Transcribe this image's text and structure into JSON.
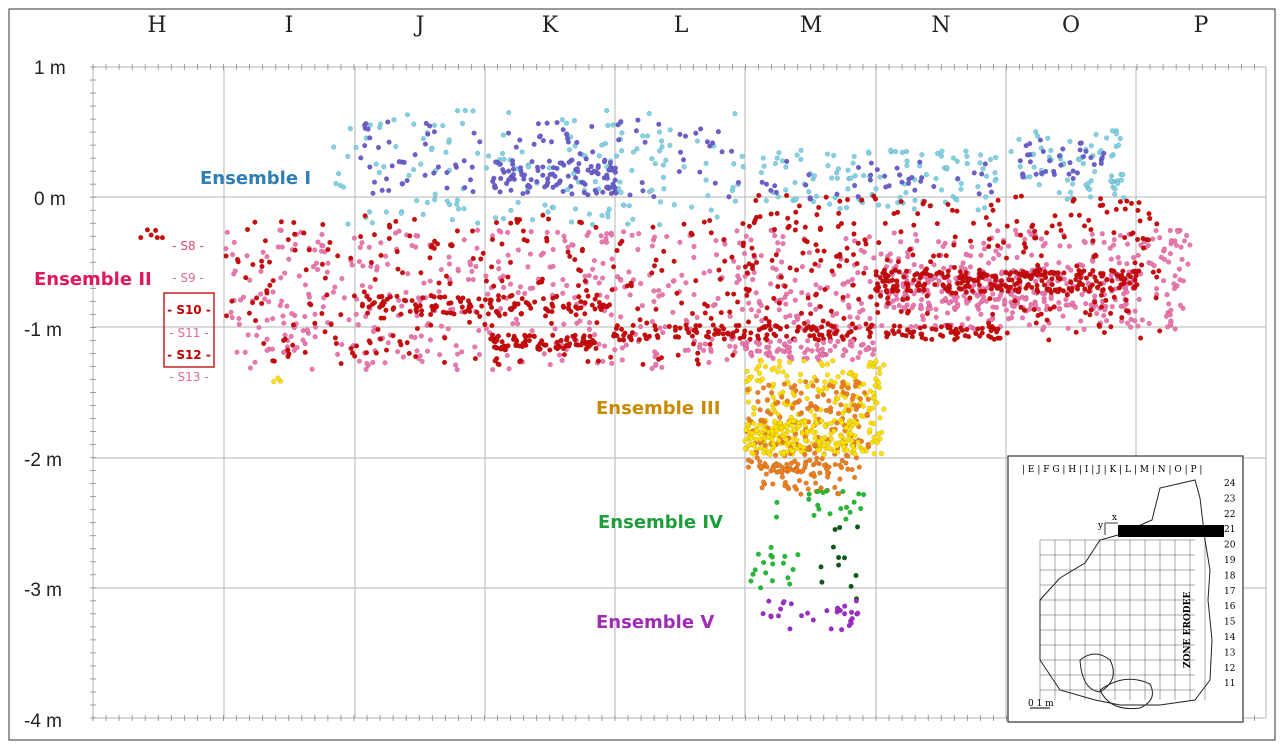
{
  "columns": [
    "H",
    "I",
    "J",
    "K",
    "L",
    "M",
    "N",
    "O",
    "P"
  ],
  "depth_labels": [
    "1 m",
    "0 m",
    "-1 m",
    "-2 m",
    "-3 m",
    "-4 m"
  ],
  "ensembles": [
    {
      "label": "Ensemble I",
      "color": "#2e7fb3"
    },
    {
      "label": "Ensemble II",
      "color": "#e0185a"
    },
    {
      "label": "Ensemble III",
      "color": "#c88a00"
    },
    {
      "label": "Ensemble IV",
      "color": "#1e9e3a"
    },
    {
      "label": "Ensemble V",
      "color": "#a02cb5"
    }
  ],
  "layers": [
    {
      "label": "- S8 -",
      "color": "#e04a6a"
    },
    {
      "label": "- S9 -",
      "color": "#e06a9a"
    },
    {
      "label": "- S10 -",
      "color": "#c00000"
    },
    {
      "label": "- S11 -",
      "color": "#e06a9a"
    },
    {
      "label": "- S12 -",
      "color": "#c00000"
    },
    {
      "label": "- S13 -",
      "color": "#e06a9a"
    }
  ],
  "inset": {
    "columns_header": "| E | F  G | H | I  | J | K | L | M | N | O | P |",
    "rows": [
      "24",
      "23",
      "22",
      "21",
      "20",
      "19",
      "18",
      "17",
      "16",
      "15",
      "14",
      "13",
      "12",
      "11"
    ],
    "zone_label": "ZONE ERODEE",
    "scale_label": "0  1 m",
    "axis_x": "x",
    "axis_y": "y"
  },
  "point_colors": {
    "light_blue": "#7fd3e6",
    "purple_blue": "#6a5fcc",
    "dark_red": "#cc0a0a",
    "pink": "#ee77b0",
    "yellow": "#ffe000",
    "orange": "#ee8020",
    "green": "#22bb33",
    "dark_green": "#0a5a14",
    "violet": "#a02cc8"
  }
}
